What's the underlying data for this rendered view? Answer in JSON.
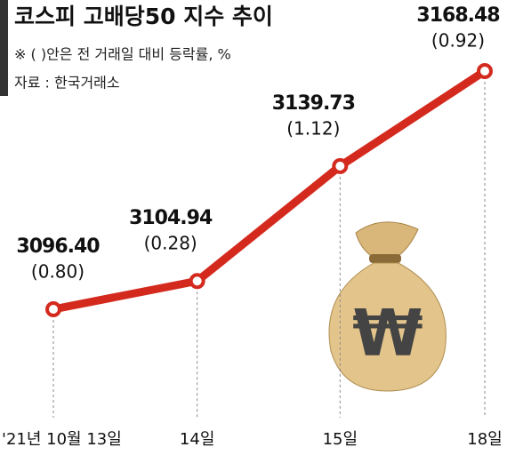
{
  "chart_data": {
    "type": "line",
    "title": "코스피 고배당50 지수 추이",
    "subtitle": "※ ( )안은 전 거래일 대비 등락률, %",
    "source": "자료 : 한국거래소",
    "categories": [
      "'21년 10월 13일",
      "14일",
      "15일",
      "18일"
    ],
    "values": [
      3096.4,
      3104.94,
      3139.73,
      3168.48
    ],
    "value_labels": [
      "3096.40",
      "3104.94",
      "3139.73",
      "3168.48"
    ],
    "change_labels": [
      "(0.80)",
      "(0.28)",
      "(1.12)",
      "(0.92)"
    ],
    "color": "#d42a1e"
  }
}
